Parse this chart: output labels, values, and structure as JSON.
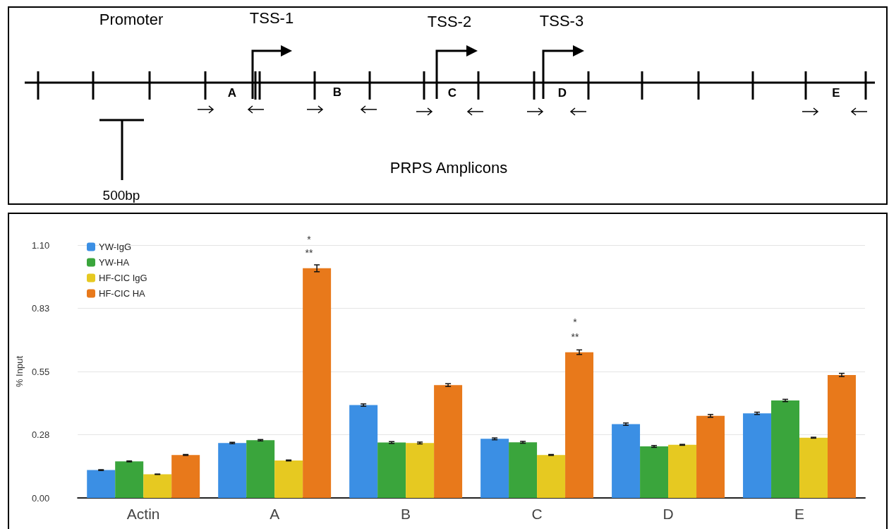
{
  "chart_data": [
    {
      "type": "other",
      "annotations": [
        "Promoter",
        "TSS-1",
        "TSS-2",
        "TSS-3",
        "A",
        "B",
        "C",
        "D",
        "E",
        "500bp",
        "PRPS Amplicons"
      ]
    },
    {
      "type": "bar",
      "ylabel": "% Input",
      "categories": [
        "Actin",
        "A",
        "B",
        "C",
        "D",
        "E"
      ],
      "series": [
        {
          "name": "YW-IgG",
          "color": "#3b8fe4",
          "values": [
            0.121,
            0.239,
            0.404,
            0.257,
            0.321,
            0.368
          ],
          "errors": [
            0.002,
            0.003,
            0.005,
            0.004,
            0.005,
            0.005
          ]
        },
        {
          "name": "YW-HA",
          "color": "#3aa53c",
          "values": [
            0.159,
            0.251,
            0.241,
            0.242,
            0.224,
            0.424
          ],
          "errors": [
            0.002,
            0.003,
            0.004,
            0.004,
            0.004,
            0.005
          ]
        },
        {
          "name": "HF-CIC IgG",
          "color": "#e6c921",
          "values": [
            0.103,
            0.163,
            0.239,
            0.187,
            0.231,
            0.262
          ],
          "errors": [
            0.001,
            0.002,
            0.004,
            0.002,
            0.002,
            0.002
          ]
        },
        {
          "name": "HF-CIC HA",
          "color": "#e8791b",
          "values": [
            0.187,
            0.999,
            0.491,
            0.634,
            0.357,
            0.535
          ],
          "errors": [
            0.002,
            0.015,
            0.006,
            0.01,
            0.006,
            0.007
          ]
        }
      ],
      "ylim": [
        0,
        1.1
      ],
      "yticks": [
        {
          "value": 0,
          "label": "0.00"
        },
        {
          "value": 0.275,
          "label": "0.28"
        },
        0.55,
        {
          "value": 0.825,
          "label": "0.83"
        },
        {
          "value": 1.1,
          "label": "1.10"
        }
      ],
      "grid": "y",
      "legend": "top left",
      "annotations": [
        "*",
        "**",
        "*",
        "**"
      ]
    }
  ]
}
